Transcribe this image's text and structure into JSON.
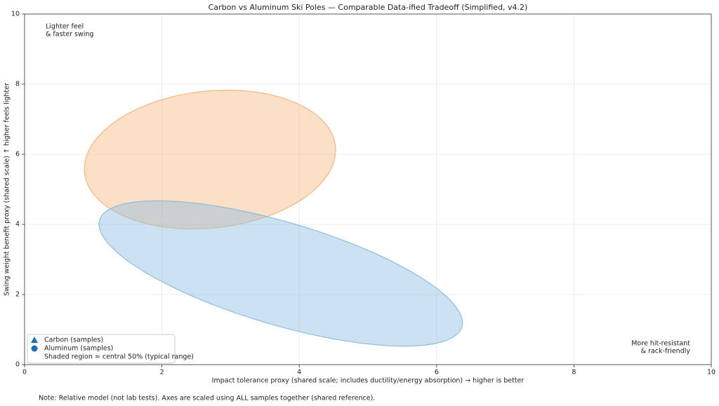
{
  "chart_data": {
    "type": "ellipse-region",
    "title": "Carbon vs Aluminum Ski Poles — Comparable Data-ified Tradeoff (Simplified, v4.2)",
    "x_label": "Impact tolerance proxy (shared scale; includes ductility/energy absorption)  →  higher is better",
    "y_label": "Swing weight benefit proxy (shared scale)  ↑  higher feels lighter",
    "xlim": [
      0,
      10
    ],
    "ylim": [
      0,
      10
    ],
    "xticks": [
      0,
      2,
      4,
      6,
      8,
      10
    ],
    "yticks": [
      0,
      2,
      4,
      6,
      8,
      10
    ],
    "grid": true,
    "legend_loc": "lower left",
    "legend_marker_color": "#1f6fae",
    "series": [
      {
        "name": "Carbon (samples)",
        "marker": "triangle",
        "color": "#f6b783",
        "region": {
          "center": [
            2.7,
            5.85
          ],
          "width": 3.5,
          "height": 4.1,
          "angle": -30
        }
      },
      {
        "name": "Aluminum (samples)",
        "marker": "circle",
        "color": "#8fbce0",
        "region": {
          "center": [
            3.73,
            2.6
          ],
          "width": 6.2,
          "height": 2.6,
          "angle": -35
        }
      }
    ],
    "region_note": "Shaded region ≈ central 50% (typical range)",
    "annotations": [
      [
        "Lighter feel",
        "& faster swing"
      ],
      [
        "More hit-resistant",
        "& rack-friendly"
      ]
    ],
    "footnote": "Note: Relative model (not lab tests). Axes are scaled using ALL samples together (shared reference)."
  }
}
